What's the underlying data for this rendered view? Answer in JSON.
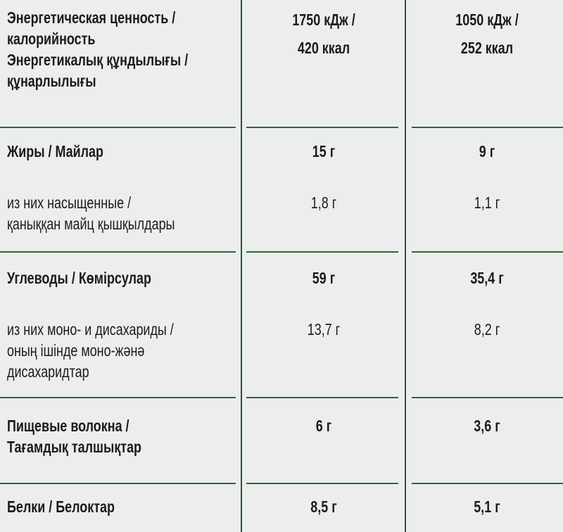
{
  "colors": {
    "background": "#eceeed",
    "text": "#1b1b1b",
    "rule": "#1f5f2c"
  },
  "rows": [
    {
      "label": [
        "Энергетическая ценность /",
        "калорийность",
        "Энергетикалық құндылығы /",
        "құнарлылығы"
      ],
      "col1": [
        "1750 кДж /",
        "420 ккал"
      ],
      "col2": [
        "1050 кДж /",
        "252 ккал"
      ],
      "bold": true
    },
    {
      "label": [
        "Жиры / Майлар"
      ],
      "col1": [
        "15 г"
      ],
      "col2": [
        "9 г"
      ],
      "bold": true
    },
    {
      "label": [
        "из них насыщенные /",
        "қаныққан майц қышқылдары"
      ],
      "col1": [
        "1,8 г"
      ],
      "col2": [
        "1,1 г"
      ],
      "bold": false
    },
    {
      "label": [
        "Углеводы / Көмірсулар"
      ],
      "col1": [
        "59 г"
      ],
      "col2": [
        "35,4 г"
      ],
      "bold": true
    },
    {
      "label": [
        "из них моно- и дисахариды /",
        "оның ішінде моно-жәнә",
        "дисахаридтар"
      ],
      "col1": [
        "13,7 г"
      ],
      "col2": [
        "8,2 г"
      ],
      "bold": false
    },
    {
      "label": [
        "Пищевые волокна /",
        "Тағамдық талшықтар"
      ],
      "col1": [
        "6 г"
      ],
      "col2": [
        "3,6 г"
      ],
      "bold": true
    },
    {
      "label": [
        "Белки / Белоктар"
      ],
      "col1": [
        "8,5 г"
      ],
      "col2": [
        "5,1 г"
      ],
      "bold": true
    }
  ]
}
